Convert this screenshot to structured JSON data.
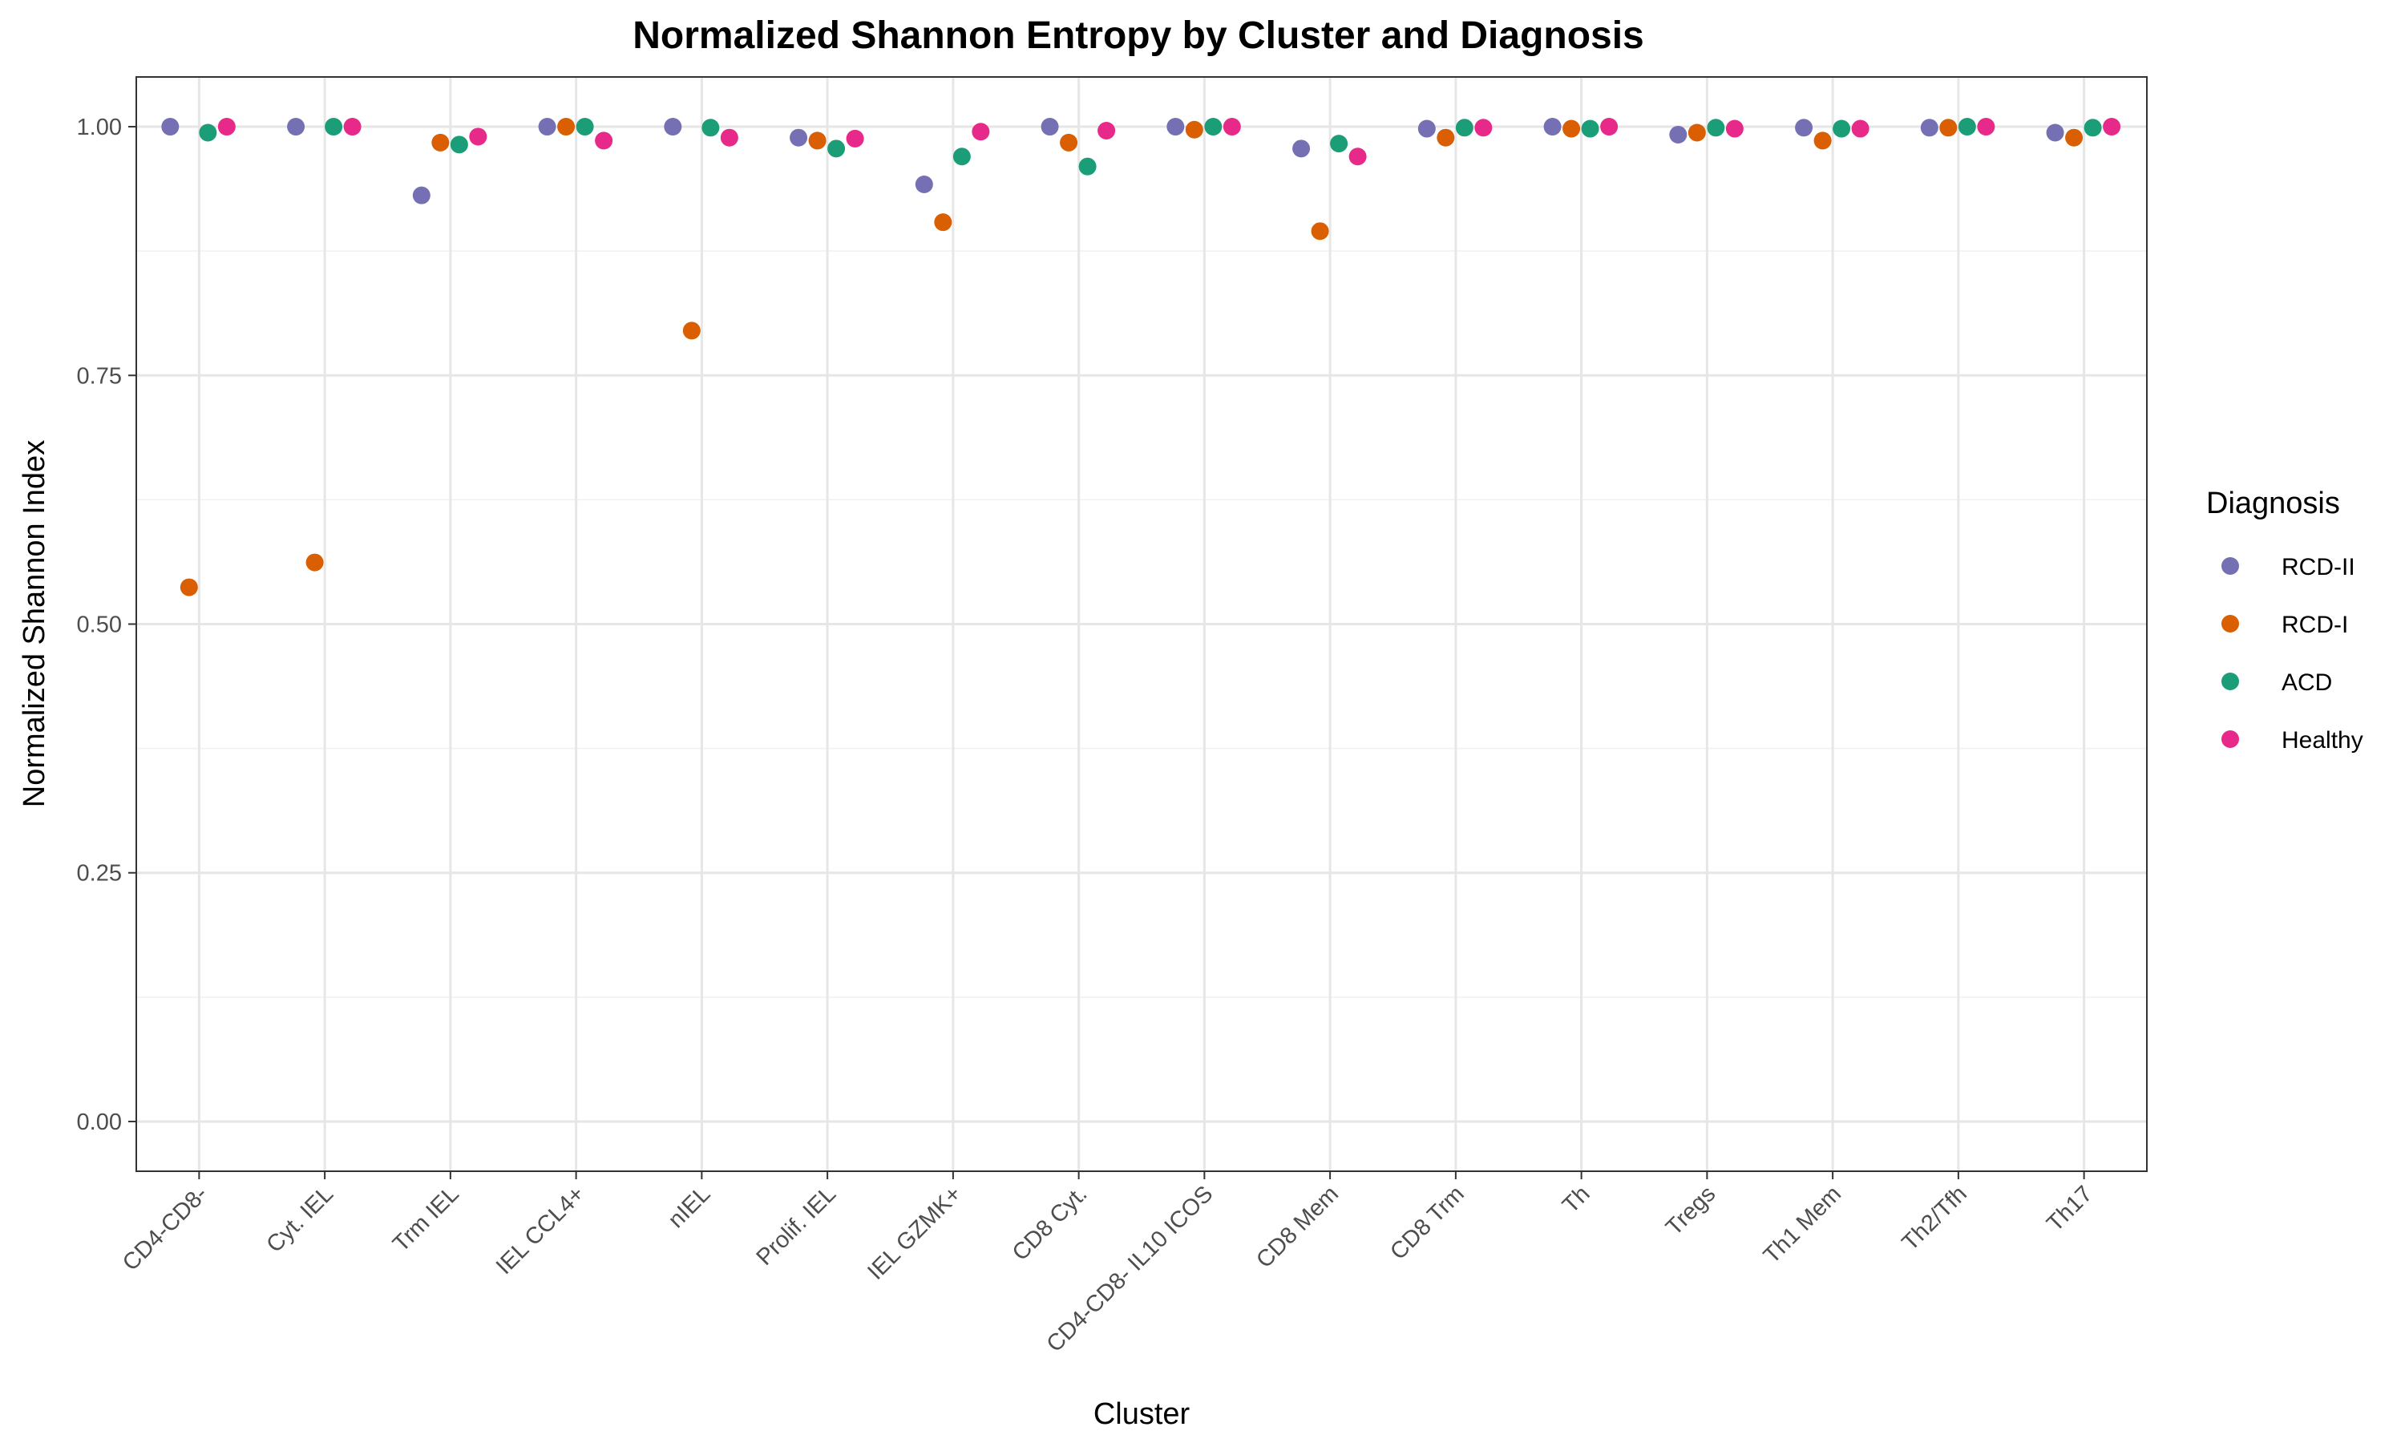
{
  "chart_data": {
    "type": "scatter",
    "title": "Normalized Shannon Entropy by Cluster and Diagnosis",
    "xlabel": "Cluster",
    "ylabel": "Normalized Shannon Index",
    "ylim": [
      -0.05,
      1.05
    ],
    "yticks": [
      0.0,
      0.25,
      0.5,
      0.75,
      1.0
    ],
    "ytick_labels": [
      "0.00",
      "0.25",
      "0.50",
      "0.75",
      "1.00"
    ],
    "grid": true,
    "legend": {
      "title": "Diagnosis",
      "position": "right"
    },
    "categories": [
      "CD4-CD8-",
      "Cyt. IEL",
      "Trm IEL",
      "IEL CCL4+",
      "nIEL",
      "Prolif. IEL",
      "IEL GZMK+",
      "CD8 Cyt.",
      "CD4-CD8- IL10 ICOS",
      "CD8 Mem",
      "CD8 Trm",
      "Th",
      "Tregs",
      "Th1 Mem",
      "Th2/Tfh",
      "Th17"
    ],
    "series": [
      {
        "name": "RCD-II",
        "color": "#7570b3",
        "offset": -0.23,
        "values": [
          1.0,
          1.0,
          0.931,
          1.0,
          1.0,
          0.989,
          0.942,
          1.0,
          1.0,
          0.978,
          0.998,
          1.0,
          0.992,
          0.999,
          0.999,
          0.994
        ]
      },
      {
        "name": "RCD-I",
        "color": "#d95f02",
        "offset": -0.08,
        "values": [
          0.537,
          0.562,
          0.984,
          1.0,
          0.795,
          0.986,
          0.904,
          0.984,
          0.997,
          0.895,
          0.989,
          0.998,
          0.994,
          0.986,
          0.999,
          0.989
        ]
      },
      {
        "name": "ACD",
        "color": "#1b9e77",
        "offset": 0.07,
        "values": [
          0.994,
          1.0,
          0.982,
          1.0,
          0.999,
          0.978,
          0.97,
          0.96,
          1.0,
          0.983,
          0.999,
          0.998,
          0.999,
          0.998,
          1.0,
          0.999
        ]
      },
      {
        "name": "Healthy",
        "color": "#e7298a",
        "offset": 0.22,
        "values": [
          1.0,
          1.0,
          0.99,
          0.986,
          0.989,
          0.988,
          0.995,
          0.996,
          1.0,
          0.97,
          0.999,
          1.0,
          0.998,
          0.998,
          1.0,
          1.0
        ]
      }
    ]
  }
}
